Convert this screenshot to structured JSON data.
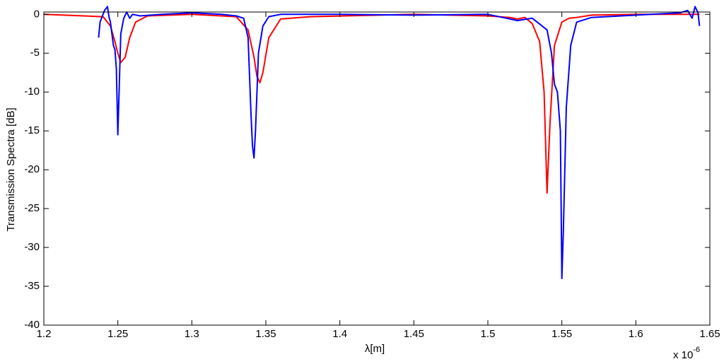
{
  "chart_data": {
    "type": "line",
    "xlabel": "λ[m]",
    "ylabel": "Transmission Spectra [dB]",
    "x_multiplier": {
      "base": "x 10",
      "exponent": "-6"
    },
    "xlim": [
      1.2,
      1.65
    ],
    "ylim": [
      -40,
      0.3
    ],
    "xticks": [
      1.2,
      1.25,
      1.3,
      1.35,
      1.4,
      1.45,
      1.5,
      1.55,
      1.6,
      1.65
    ],
    "yticks": [
      0,
      -5,
      -10,
      -15,
      -20,
      -25,
      -30,
      -35,
      -40
    ],
    "grid": false,
    "series": [
      {
        "color": "#ff0000",
        "x": [
          1.2,
          1.24,
          1.245,
          1.248,
          1.25,
          1.252,
          1.255,
          1.258,
          1.262,
          1.27,
          1.3,
          1.33,
          1.338,
          1.342,
          1.344,
          1.346,
          1.348,
          1.352,
          1.36,
          1.38,
          1.45,
          1.5,
          1.515,
          1.52,
          1.525,
          1.53,
          1.535,
          1.538,
          1.54,
          1.542,
          1.545,
          1.55,
          1.555,
          1.56,
          1.57,
          1.6,
          1.643
        ],
        "values": [
          0,
          -0.3,
          -1.5,
          -3.5,
          -5,
          -6.2,
          -5.5,
          -3,
          -1,
          -0.2,
          0,
          -0.3,
          -2,
          -5.5,
          -8,
          -8.8,
          -7.5,
          -3,
          -0.6,
          -0.3,
          0,
          -0.2,
          -0.4,
          -0.6,
          -0.4,
          -1.2,
          -3.5,
          -10,
          -23,
          -14,
          -4,
          -1,
          -0.5,
          -0.4,
          -0.1,
          0,
          0
        ]
      },
      {
        "color": "#0000ff",
        "x": [
          1.237,
          1.238,
          1.239,
          1.241,
          1.243,
          1.244,
          1.245,
          1.247,
          1.248,
          1.249,
          1.25,
          1.251,
          1.252,
          1.254,
          1.256,
          1.258,
          1.26,
          1.265,
          1.28,
          1.3,
          1.32,
          1.33,
          1.335,
          1.338,
          1.34,
          1.341,
          1.342,
          1.343,
          1.345,
          1.348,
          1.352,
          1.36,
          1.4,
          1.45,
          1.5,
          1.51,
          1.52,
          1.53,
          1.54,
          1.543,
          1.545,
          1.547,
          1.549,
          1.55,
          1.551,
          1.553,
          1.556,
          1.56,
          1.57,
          1.6,
          1.63,
          1.635,
          1.638,
          1.64,
          1.642,
          1.643
        ],
        "values": [
          -3,
          -1,
          -0.5,
          0.5,
          1,
          -0.3,
          -1,
          -4,
          -4.5,
          -7,
          -15.5,
          -9,
          -2.5,
          -0.5,
          0.3,
          -0.5,
          0,
          -0.2,
          0,
          0.2,
          0,
          -0.2,
          -0.5,
          -3,
          -13,
          -17,
          -18.5,
          -15,
          -5,
          -1.5,
          -0.3,
          0,
          0,
          -0.1,
          0,
          -0.4,
          -0.8,
          -0.5,
          -2,
          -5,
          -9,
          -10,
          -15,
          -34,
          -28,
          -12,
          -4,
          -1,
          -0.4,
          -0.1,
          0.2,
          0.5,
          -0.5,
          1,
          0.2,
          -1.5
        ]
      }
    ]
  }
}
